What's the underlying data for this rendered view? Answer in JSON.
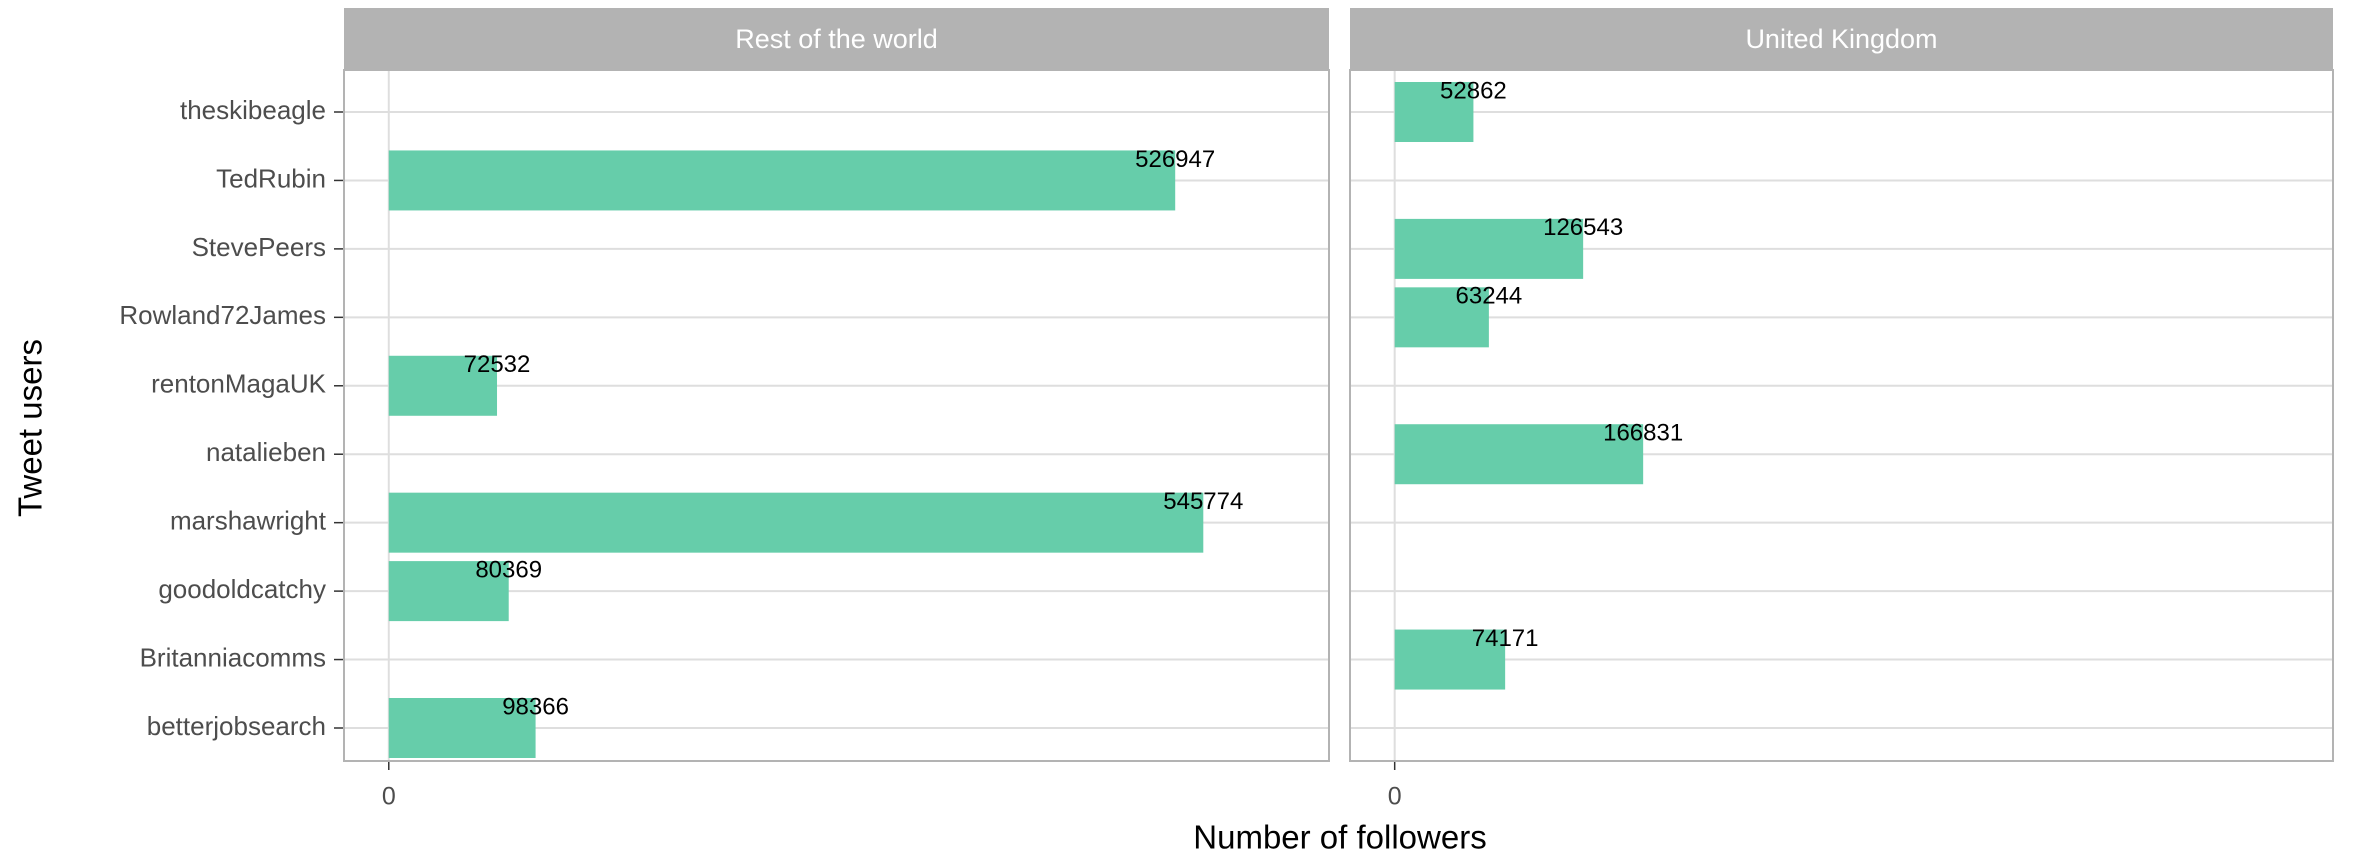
{
  "chart_data": {
    "type": "bar",
    "orientation": "horizontal",
    "x_label": "Number of followers",
    "y_label": "Tweet users",
    "categories": [
      "theskibeagle",
      "TedRubin",
      "StevePeers",
      "Rowland72James",
      "rentonMagaUK",
      "natalieben",
      "marshawright",
      "goodoldcatchy",
      "Britanniacomms",
      "betterjobsearch"
    ],
    "color": "#66cdaa",
    "grid": true,
    "xlim": [
      -30000,
      630000
    ],
    "xticks": [
      0
    ],
    "facets": [
      {
        "title": "Rest of the world",
        "values": [
          null,
          526947,
          null,
          null,
          72532,
          null,
          545774,
          80369,
          null,
          98366
        ]
      },
      {
        "title": "United Kingdom",
        "values": [
          52862,
          null,
          126543,
          63244,
          null,
          166831,
          null,
          null,
          74171,
          null
        ]
      }
    ]
  }
}
